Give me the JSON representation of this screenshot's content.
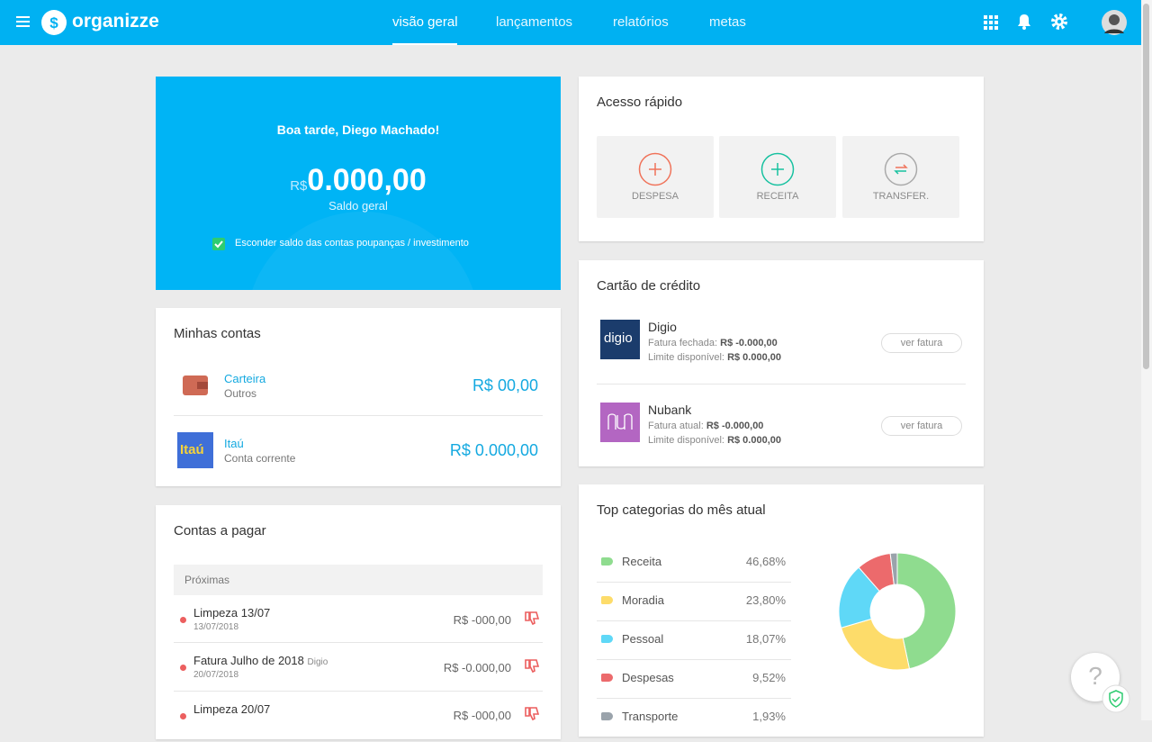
{
  "header": {
    "logo": "organizze",
    "nav": [
      "visão geral",
      "lançamentos",
      "relatórios",
      "metas"
    ]
  },
  "summary": {
    "greeting": "Boa tarde, Diego Machado!",
    "currency": "R$",
    "balance": "0.000,00",
    "balance_label": "Saldo geral",
    "hide_savings": "Esconder saldo das contas poupanças / investimento"
  },
  "accounts": {
    "title": "Minhas contas",
    "items": [
      {
        "name": "Carteira",
        "type": "Outros",
        "balance": "R$ 00,00"
      },
      {
        "name": "Itaú",
        "type": "Conta corrente",
        "balance": "R$ 0.000,00",
        "logo": "Itaú"
      }
    ]
  },
  "bills": {
    "title": "Contas a pagar",
    "section": "Próximas",
    "items": [
      {
        "name": "Limpeza 13/07",
        "date": "13/07/2018",
        "amount": "R$ -000,00"
      },
      {
        "name": "Fatura Julho de 2018",
        "tag": "Digio",
        "date": "20/07/2018",
        "amount": "R$ -0.000,00"
      },
      {
        "name": "Limpeza 20/07",
        "amount": "R$ -000,00"
      }
    ]
  },
  "quick_access": {
    "title": "Acesso rápido",
    "actions": [
      "DESPESA",
      "RECEITA",
      "TRANSFER."
    ]
  },
  "credit_cards": {
    "title": "Cartão de crédito",
    "action": "ver fatura",
    "items": [
      {
        "name": "Digio",
        "logo": "digio",
        "line1_label": "Fatura fechada:",
        "line1_value": "R$ -0.000,00",
        "line2_label": "Limite disponível:",
        "line2_value": "R$ 0.000,00"
      },
      {
        "name": "Nubank",
        "line1_label": "Fatura atual:",
        "line1_value": "R$ -0.000,00",
        "line2_label": "Limite disponível:",
        "line2_value": "R$ 0.000,00"
      }
    ]
  },
  "top_categories": {
    "title": "Top categorias do mês atual",
    "items": [
      {
        "name": "Receita",
        "value": 46.68,
        "label": "46,68%",
        "color": "#8fdc8f"
      },
      {
        "name": "Moradia",
        "value": 23.8,
        "label": "23,80%",
        "color": "#fddc6a"
      },
      {
        "name": "Pessoal",
        "value": 18.07,
        "label": "18,07%",
        "color": "#5fd8f7"
      },
      {
        "name": "Despesas",
        "value": 9.52,
        "label": "9,52%",
        "color": "#ec6a6c"
      },
      {
        "name": "Transporte",
        "value": 1.93,
        "label": "1,93%",
        "color": "#9aa3ab"
      }
    ]
  },
  "help": "?"
}
